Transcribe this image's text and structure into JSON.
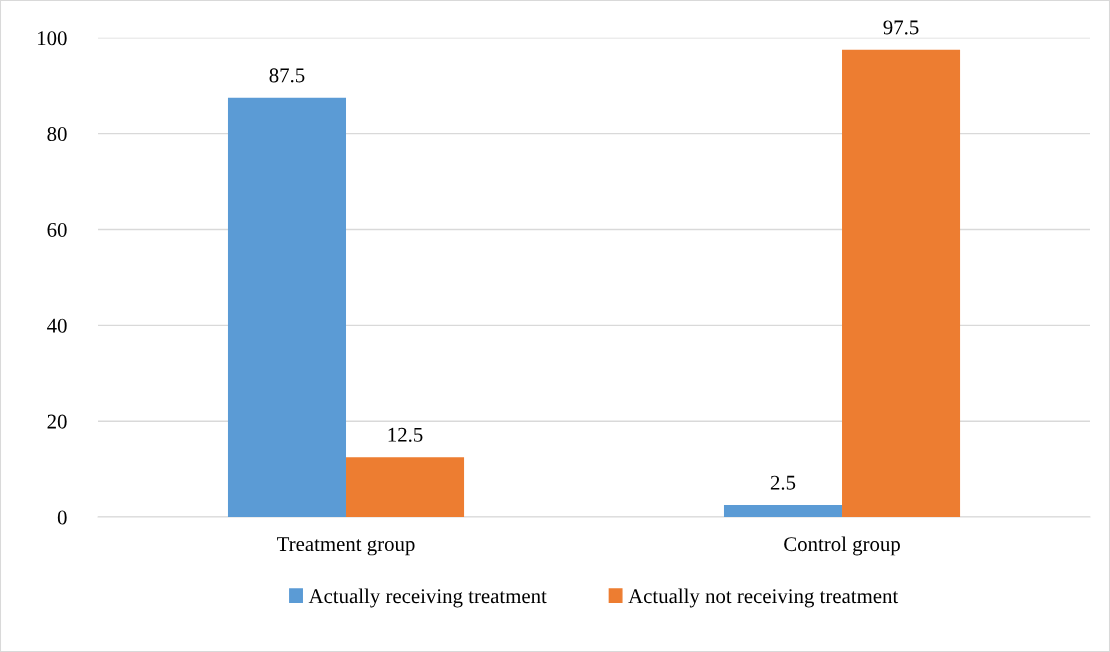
{
  "chart_data": {
    "type": "bar",
    "categories": [
      "Treatment group",
      "Control group"
    ],
    "series": [
      {
        "name": "Actually receiving treatment",
        "color": "#5b9bd5",
        "values": [
          87.5,
          2.5
        ]
      },
      {
        "name": "Actually not receiving treatment",
        "color": "#ed7d31",
        "values": [
          12.5,
          97.5
        ]
      }
    ],
    "ylim": [
      0,
      100
    ],
    "yticks": [
      0,
      20,
      40,
      60,
      80,
      100
    ],
    "grid": "y",
    "legend": "bottom",
    "data_labels": true
  }
}
